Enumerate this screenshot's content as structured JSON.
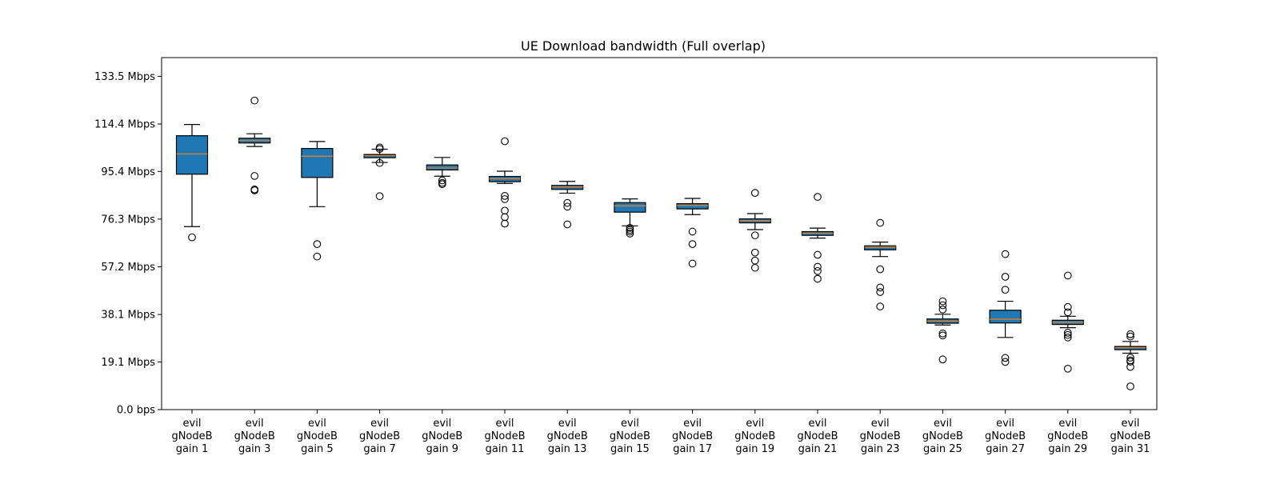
{
  "chart_data": {
    "type": "boxplot",
    "title": "UE Download bandwidth (Full overlap)",
    "xlabel": "",
    "ylabel": "",
    "ylim": [
      0,
      141
    ],
    "y_ticks": [
      {
        "value": 0.0,
        "label": "0.0 bps"
      },
      {
        "value": 19.1,
        "label": "19.1 Mbps"
      },
      {
        "value": 38.1,
        "label": "38.1 Mbps"
      },
      {
        "value": 57.2,
        "label": "57.2 Mbps"
      },
      {
        "value": 76.3,
        "label": "76.3 Mbps"
      },
      {
        "value": 95.4,
        "label": "95.4 Mbps"
      },
      {
        "value": 114.4,
        "label": "114.4 Mbps"
      },
      {
        "value": 133.5,
        "label": "133.5 Mbps"
      }
    ],
    "colors": {
      "box_fill": "#1f77b4",
      "median": "#ff7f0e",
      "outline": "#000000"
    },
    "grid": false,
    "categories": [
      {
        "label_lines": [
          "evil",
          "gNodeB",
          "gain 1"
        ],
        "whisker_low": 73.3,
        "q1": 94.3,
        "median": 102.4,
        "q3": 109.7,
        "whisker_high": 114.2,
        "outliers": [
          69.0
        ]
      },
      {
        "label_lines": [
          "evil",
          "gNodeB",
          "gain 3"
        ],
        "whisker_low": 105.4,
        "q1": 106.8,
        "median": 107.9,
        "q3": 108.7,
        "whisker_high": 110.5,
        "outliers": [
          123.8,
          93.6,
          88.2,
          87.8
        ]
      },
      {
        "label_lines": [
          "evil",
          "gNodeB",
          "gain 5"
        ],
        "whisker_low": 81.3,
        "q1": 93.0,
        "median": 101.5,
        "q3": 104.6,
        "whisker_high": 107.4,
        "outliers": [
          66.3,
          61.3
        ]
      },
      {
        "label_lines": [
          "evil",
          "gNodeB",
          "gain 7"
        ],
        "whisker_low": 99.0,
        "q1": 100.9,
        "median": 101.7,
        "q3": 102.2,
        "whisker_high": 104.3,
        "outliers": [
          105.0,
          104.4,
          98.8,
          85.5
        ]
      },
      {
        "label_lines": [
          "evil",
          "gNodeB",
          "gain 9"
        ],
        "whisker_low": 93.5,
        "q1": 96.0,
        "median": 96.8,
        "q3": 98.0,
        "whisker_high": 101.0,
        "outliers": [
          91.8,
          90.8,
          90.3
        ]
      },
      {
        "label_lines": [
          "evil",
          "gNodeB",
          "gain 11"
        ],
        "whisker_low": 90.6,
        "q1": 91.3,
        "median": 92.5,
        "q3": 93.4,
        "whisker_high": 95.5,
        "outliers": [
          107.5,
          85.6,
          84.3,
          79.7,
          77.1,
          74.5
        ]
      },
      {
        "label_lines": [
          "evil",
          "gNodeB",
          "gain 13"
        ],
        "whisker_low": 86.7,
        "q1": 88.2,
        "median": 89.2,
        "q3": 89.8,
        "whisker_high": 91.4,
        "outliers": [
          82.8,
          81.3,
          74.2
        ]
      },
      {
        "label_lines": [
          "evil",
          "gNodeB",
          "gain 15"
        ],
        "whisker_low": 73.6,
        "q1": 79.1,
        "median": 81.6,
        "q3": 82.9,
        "whisker_high": 84.4,
        "outliers": [
          72.8,
          72.0,
          71.3,
          70.5
        ]
      },
      {
        "label_lines": [
          "evil",
          "gNodeB",
          "gain 17"
        ],
        "whisker_low": 78.1,
        "q1": 80.4,
        "median": 81.8,
        "q3": 82.5,
        "whisker_high": 84.6,
        "outliers": [
          71.3,
          66.3,
          58.5
        ]
      },
      {
        "label_lines": [
          "evil",
          "gNodeB",
          "gain 19"
        ],
        "whisker_low": 72.1,
        "q1": 74.8,
        "median": 75.7,
        "q3": 76.4,
        "whisker_high": 78.5,
        "outliers": [
          86.8,
          69.8,
          62.9,
          59.7,
          56.8
        ]
      },
      {
        "label_lines": [
          "evil",
          "gNodeB",
          "gain 21"
        ],
        "whisker_low": 68.7,
        "q1": 69.8,
        "median": 70.6,
        "q3": 71.3,
        "whisker_high": 72.7,
        "outliers": [
          85.2,
          62.0,
          57.2,
          55.5,
          52.4
        ]
      },
      {
        "label_lines": [
          "evil",
          "gNodeB",
          "gain 23"
        ],
        "whisker_low": 61.3,
        "q1": 64.0,
        "median": 65.1,
        "q3": 65.6,
        "whisker_high": 67.1,
        "outliers": [
          74.8,
          56.2,
          48.9,
          47.1,
          41.3
        ]
      },
      {
        "label_lines": [
          "evil",
          "gNodeB",
          "gain 25"
        ],
        "whisker_low": 33.9,
        "q1": 34.6,
        "median": 35.5,
        "q3": 36.3,
        "whisker_high": 38.2,
        "outliers": [
          43.4,
          41.8,
          40.1,
          30.5,
          29.7,
          20.1
        ]
      },
      {
        "label_lines": [
          "evil",
          "gNodeB",
          "gain 27"
        ],
        "whisker_low": 28.9,
        "q1": 34.7,
        "median": 36.2,
        "q3": 39.8,
        "whisker_high": 43.4,
        "outliers": [
          62.3,
          53.2,
          48.0,
          20.7,
          19.1
        ]
      },
      {
        "label_lines": [
          "evil",
          "gNodeB",
          "gain 29"
        ],
        "whisker_low": 32.8,
        "q1": 34.1,
        "median": 35.0,
        "q3": 35.8,
        "whisker_high": 37.4,
        "outliers": [
          53.7,
          41.1,
          39.0,
          30.8,
          29.9,
          28.9,
          16.4
        ]
      },
      {
        "label_lines": [
          "evil",
          "gNodeB",
          "gain 31"
        ],
        "whisker_low": 22.6,
        "q1": 24.0,
        "median": 24.8,
        "q3": 25.3,
        "whisker_high": 27.3,
        "outliers": [
          30.2,
          29.3,
          20.8,
          19.7,
          19.2,
          17.1,
          9.3
        ]
      }
    ]
  }
}
